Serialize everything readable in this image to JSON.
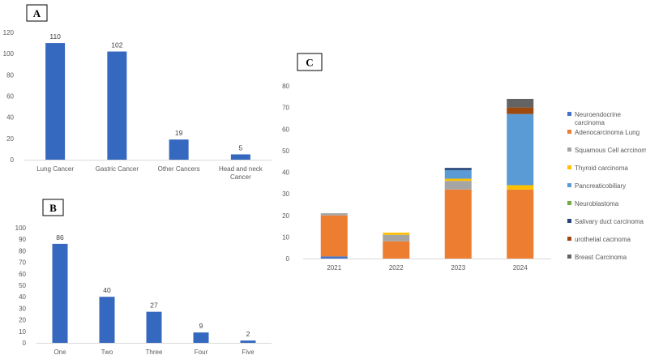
{
  "chart_data": [
    {
      "panel": "A",
      "type": "bar",
      "categories": [
        [
          "Lung Cancer"
        ],
        [
          "Gastric Cancer"
        ],
        [
          "Other Cancers"
        ],
        [
          "Head and neck",
          "Cancer"
        ]
      ],
      "values": [
        110,
        102,
        19,
        5
      ],
      "ylim": [
        0,
        120
      ],
      "yticks": [
        0,
        20,
        40,
        60,
        80,
        100,
        120
      ],
      "data_labels": true,
      "color": "#3568bf",
      "grid": false
    },
    {
      "panel": "B",
      "type": "bar",
      "categories": [
        [
          "One"
        ],
        [
          "Two"
        ],
        [
          "Three"
        ],
        [
          "Four"
        ],
        [
          "Five"
        ]
      ],
      "values": [
        86,
        40,
        27,
        9,
        2
      ],
      "ylim": [
        0,
        100
      ],
      "yticks": [
        0,
        10,
        20,
        30,
        40,
        50,
        60,
        70,
        80,
        90,
        100
      ],
      "data_labels": true,
      "color": "#3568bf",
      "grid": false
    },
    {
      "panel": "C",
      "type": "bar",
      "stacked": true,
      "categories": [
        "2021",
        "2022",
        "2023",
        "2024"
      ],
      "ylim": [
        0,
        80
      ],
      "yticks": [
        0,
        10,
        20,
        30,
        40,
        50,
        60,
        70,
        80
      ],
      "legend_position": "right",
      "grid": false,
      "series": [
        {
          "name": "Neuroendocrine carcinoma",
          "legend_lines": [
            "Neuroendocrine",
            "carcinoma"
          ],
          "color": "#4472c4",
          "values": [
            1,
            0,
            0,
            0
          ]
        },
        {
          "name": "Adenocarcinoma Lung",
          "legend_lines": [
            "Adenocarcinoma Lung"
          ],
          "color": "#ed7d31",
          "values": [
            19,
            8,
            32,
            32
          ]
        },
        {
          "name": "Squamous Cell acrcinoma",
          "legend_lines": [
            "Squamous Cell acrcinoma"
          ],
          "color": "#a5a5a5",
          "values": [
            1,
            3,
            4,
            0
          ]
        },
        {
          "name": "Thyroid carcinoma",
          "legend_lines": [
            "Thyroid carcinoma"
          ],
          "color": "#ffc000",
          "values": [
            0,
            1,
            1,
            2
          ]
        },
        {
          "name": "Pancreaticobiliary",
          "legend_lines": [
            "Pancreaticobiliary"
          ],
          "color": "#5b9bd5",
          "values": [
            0,
            0,
            4,
            33
          ]
        },
        {
          "name": "Neuroblastoma",
          "legend_lines": [
            "Neuroblastoma"
          ],
          "color": "#70ad47",
          "values": [
            0,
            0,
            0,
            0
          ]
        },
        {
          "name": "Salivary duct carcinoma",
          "legend_lines": [
            "Salivary duct carcinoma"
          ],
          "color": "#264478",
          "values": [
            0,
            0,
            1,
            0
          ]
        },
        {
          "name": "urothelial cacinoma",
          "legend_lines": [
            "urothelial cacinoma"
          ],
          "color": "#9e480e",
          "values": [
            0,
            0,
            0,
            3
          ]
        },
        {
          "name": "Breast Carcinoma",
          "legend_lines": [
            "Breast Carcinoma"
          ],
          "color": "#636363",
          "values": [
            0,
            0,
            0,
            4
          ]
        }
      ]
    }
  ]
}
